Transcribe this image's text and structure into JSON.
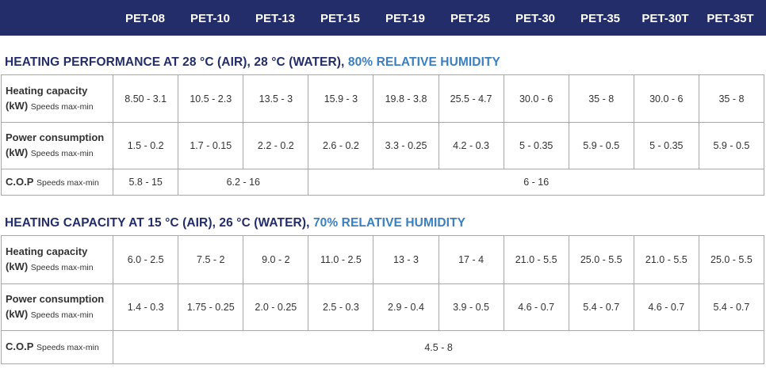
{
  "models": [
    "PET-08",
    "PET-10",
    "PET-13",
    "PET-15",
    "PET-19",
    "PET-25",
    "PET-30",
    "PET-35",
    "PET-30T",
    "PET-35T"
  ],
  "section1": {
    "title_part1": "HEATING PERFORMANCE AT 28 °C (AIR), 28 °C (WATER), ",
    "title_part2": "80% RELATIVE HUMIDITY",
    "heating_capacity": {
      "label": "Heating capacity",
      "unit": "(kW)",
      "sublabel": "Speeds max-min",
      "values": [
        "8.50 - 3.1",
        "10.5 - 2.3",
        "13.5 - 3",
        "15.9 - 3",
        "19.8 - 3.8",
        "25.5 - 4.7",
        "30.0 - 6",
        "35 - 8",
        "30.0 - 6",
        "35 - 8"
      ]
    },
    "power_consumption": {
      "label": "Power consumption",
      "unit": "(kW)",
      "sublabel": "Speeds max-min",
      "values": [
        "1.5 - 0.2",
        "1.7 - 0.15",
        "2.2 - 0.2",
        "2.6 - 0.2",
        "3.3 - 0.25",
        "4.2 - 0.3",
        "5 - 0.35",
        "5.9 - 0.5",
        "5 - 0.35",
        "5.9 - 0.5"
      ]
    },
    "cop": {
      "label": "C.O.P",
      "sublabel": "Speeds max-min",
      "values": [
        "5.8 - 15",
        "6.2 - 16",
        "6 - 16"
      ]
    }
  },
  "section2": {
    "title_part1": "HEATING CAPACITY AT 15 °C (AIR), 26 °C (WATER), ",
    "title_part2": "70% RELATIVE HUMIDITY",
    "heating_capacity": {
      "label": "Heating capacity",
      "unit": "(kW)",
      "sublabel": "Speeds max-min",
      "values": [
        "6.0 - 2.5",
        "7.5 - 2",
        "9.0 - 2",
        "11.0 - 2.5",
        "13 - 3",
        "17 - 4",
        "21.0 - 5.5",
        "25.0 - 5.5",
        "21.0 - 5.5",
        "25.0 - 5.5"
      ]
    },
    "power_consumption": {
      "label": "Power consumption",
      "unit": "(kW)",
      "sublabel": "Speeds max-min",
      "values": [
        "1.4 - 0.3",
        "1.75 - 0.25",
        "2.0 - 0.25",
        "2.5 - 0.3",
        "2.9 - 0.4",
        "3.9 - 0.5",
        "4.6 - 0.7",
        "5.4 - 0.7",
        "4.6 - 0.7",
        "5.4 - 0.7"
      ]
    },
    "cop": {
      "label": "C.O.P",
      "sublabel": "Speeds max-min",
      "values": [
        "4.5 - 8"
      ]
    }
  },
  "colors": {
    "header_bg": "#222d6a",
    "title_dark": "#222d6a",
    "title_light": "#3a7fbf",
    "border": "#a8a8a8"
  }
}
